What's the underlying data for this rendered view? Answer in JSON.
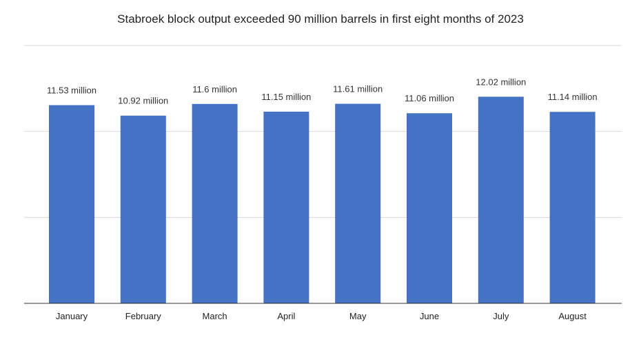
{
  "chart_data": {
    "type": "bar",
    "title": "Stabroek block output exceeded 90 million barrels in first eight months of 2023",
    "categories": [
      "January",
      "February",
      "March",
      "April",
      "May",
      "June",
      "July",
      "August"
    ],
    "values": [
      11.53,
      10.92,
      11.6,
      11.15,
      11.61,
      11.06,
      12.02,
      11.14
    ],
    "data_labels": [
      "11.53 million",
      "10.92 million",
      "11.6 million",
      "11.15 million",
      "11.61 million",
      "11.06 million",
      "12.02 million",
      "11.14 million"
    ],
    "xlabel": "",
    "ylabel": "",
    "ylim": [
      0,
      15
    ],
    "grid": true,
    "y_ticks_shown": false,
    "legend": "none",
    "colors": {
      "bar": "#4472c4",
      "grid": "#d9d9d9",
      "baseline": "#333333"
    }
  }
}
